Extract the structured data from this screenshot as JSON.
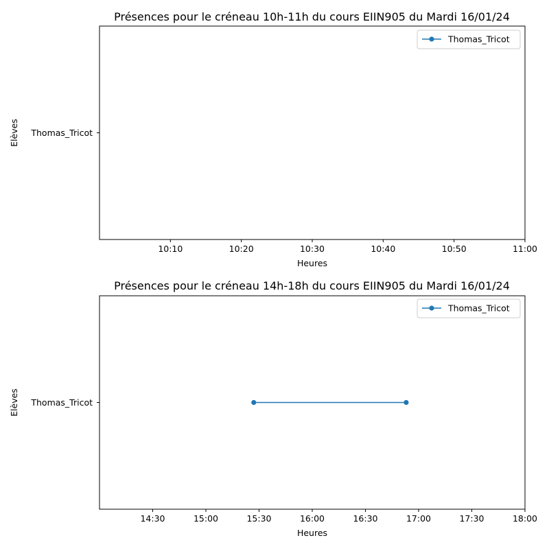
{
  "colors": {
    "series": "#1f77b4",
    "axes": "#000000",
    "legend_border": "#cccccc"
  },
  "chart_data": [
    {
      "type": "line",
      "title": "Présences pour le créneau 10h-11h du cours EIIN905 du Mardi 16/01/24",
      "xlabel": "Heures",
      "ylabel": "Elèves",
      "xlim": [
        "10:00",
        "11:00"
      ],
      "x_ticks": [
        "10:10",
        "10:20",
        "10:30",
        "10:40",
        "10:50",
        "11:00"
      ],
      "y_categories": [
        "Thomas_Tricot"
      ],
      "grid": false,
      "legend_position": "top-right",
      "series": [
        {
          "name": "Thomas_Tricot",
          "marker": "circle",
          "points": []
        }
      ]
    },
    {
      "type": "line",
      "title": "Présences pour le créneau 14h-18h du cours EIIN905 du Mardi 16/01/24",
      "xlabel": "Heures",
      "ylabel": "Elèves",
      "xlim": [
        "14:00",
        "18:00"
      ],
      "x_ticks": [
        "14:30",
        "15:00",
        "15:30",
        "16:00",
        "16:30",
        "17:00",
        "17:30",
        "18:00"
      ],
      "y_categories": [
        "Thomas_Tricot"
      ],
      "grid": false,
      "legend_position": "top-right",
      "series": [
        {
          "name": "Thomas_Tricot",
          "marker": "circle",
          "points": [
            {
              "x": "15:27",
              "y": "Thomas_Tricot"
            },
            {
              "x": "16:53",
              "y": "Thomas_Tricot"
            }
          ]
        }
      ]
    }
  ]
}
